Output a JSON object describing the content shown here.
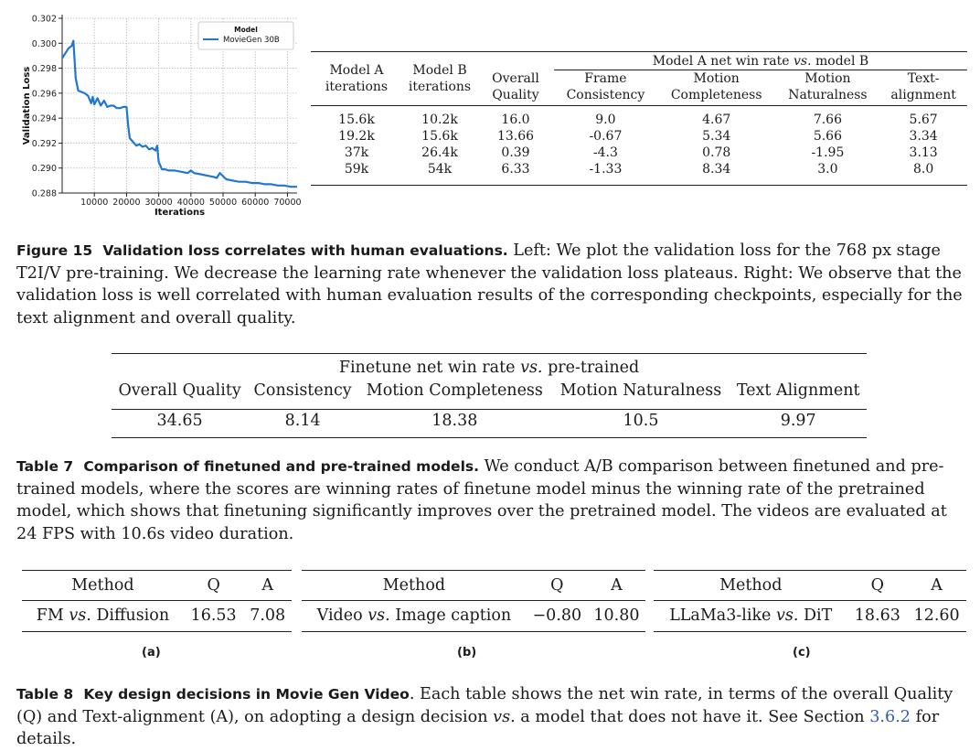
{
  "chart_data": {
    "type": "line",
    "xlabel": "Iterations",
    "ylabel": "Validation Loss",
    "xlim": [
      0,
      73000
    ],
    "ylim": [
      0.288,
      0.302
    ],
    "xticks": [
      10000,
      20000,
      30000,
      40000,
      50000,
      60000,
      70000
    ],
    "xtick_labels": [
      "10000",
      "20000",
      "30000",
      "40000",
      "50000",
      "60000",
      "70000"
    ],
    "yticks": [
      0.288,
      0.29,
      0.292,
      0.294,
      0.296,
      0.298,
      0.3,
      0.302
    ],
    "ytick_labels": [
      "0.288",
      "0.290",
      "0.292",
      "0.294",
      "0.296",
      "0.298",
      "0.300",
      "0.302"
    ],
    "grid": true,
    "legend_title": "Model",
    "legend_position": "top-right",
    "series": [
      {
        "name": "MovieGen 30B",
        "color": "#1f77d4",
        "x": [
          0,
          1000,
          2000,
          3000,
          3500,
          4200,
          5000,
          6000,
          7000,
          8000,
          9000,
          9500,
          10000,
          11000,
          12000,
          13000,
          14000,
          15000,
          16000,
          17000,
          18000,
          19000,
          20000,
          20500,
          21000,
          22000,
          23000,
          24000,
          25000,
          26000,
          27000,
          28000,
          29000,
          29500,
          30000,
          31000,
          32000,
          33000,
          35000,
          37000,
          39000,
          40000,
          41000,
          43000,
          45000,
          47000,
          48000,
          49000,
          51000,
          53000,
          55000,
          57000,
          59000,
          61000,
          63000,
          65000,
          67000,
          69000,
          71000,
          73000
        ],
        "y": [
          0.2988,
          0.2992,
          0.2996,
          0.2998,
          0.3002,
          0.2972,
          0.2962,
          0.2961,
          0.296,
          0.2958,
          0.2952,
          0.2957,
          0.2951,
          0.2956,
          0.295,
          0.2954,
          0.2949,
          0.295,
          0.295,
          0.2948,
          0.2948,
          0.2949,
          0.2949,
          0.2934,
          0.2924,
          0.2921,
          0.2918,
          0.2919,
          0.2917,
          0.2918,
          0.2915,
          0.2916,
          0.2914,
          0.2918,
          0.2905,
          0.2899,
          0.2899,
          0.2898,
          0.2898,
          0.2897,
          0.2896,
          0.2898,
          0.2896,
          0.2895,
          0.2894,
          0.2893,
          0.2892,
          0.2896,
          0.2891,
          0.289,
          0.2889,
          0.2889,
          0.2888,
          0.2888,
          0.2887,
          0.2887,
          0.2886,
          0.2886,
          0.2885,
          0.2885
        ]
      }
    ]
  },
  "table15": {
    "col_model_a": [
      "Model A",
      "iterations"
    ],
    "col_model_b": [
      "Model B",
      "iterations"
    ],
    "col_overall": [
      "Overall",
      "Quality"
    ],
    "group_pre": "Model A net win rate ",
    "group_vs": "vs.",
    "group_post": " model B",
    "col_frame": [
      "Frame",
      "Consistency"
    ],
    "col_motion_comp": [
      "Motion",
      "Completeness"
    ],
    "col_motion_nat": [
      "Motion",
      "Naturalness"
    ],
    "col_text": [
      "Text-",
      "alignment"
    ],
    "rows": [
      [
        "15.6k",
        "10.2k",
        "16.0",
        "9.0",
        "4.67",
        "7.66",
        "5.67"
      ],
      [
        "19.2k",
        "15.6k",
        "13.66",
        "-0.67",
        "5.34",
        "5.66",
        "3.34"
      ],
      [
        "37k",
        "26.4k",
        "0.39",
        "-4.3",
        "0.78",
        "-1.95",
        "3.13"
      ],
      [
        "59k",
        "54k",
        "6.33",
        "-1.33",
        "8.34",
        "3.0",
        "8.0"
      ]
    ]
  },
  "fig15_caption": {
    "label": "Figure 15",
    "bold": "Validation loss correlates with human evaluations.",
    "text": " Left: We plot the validation loss for the 768 px stage T2I/V pre-training. We decrease the learning rate whenever the validation loss plateaus. Right: We observe that the validation loss is well correlated with human evaluation results of the corresponding checkpoints, especially for the text alignment and overall quality."
  },
  "table7": {
    "header_pre": "Finetune net win rate ",
    "header_vs": "vs.",
    "header_post": " pre-trained",
    "columns": [
      "Overall Quality",
      "Consistency",
      "Motion Completeness",
      "Motion Naturalness",
      "Text Alignment"
    ],
    "values": [
      "34.65",
      "8.14",
      "18.38",
      "10.5",
      "9.97"
    ]
  },
  "table7_caption": {
    "label": "Table 7",
    "bold": "Comparison of finetuned and pre-trained models.",
    "text": " We conduct A/B comparison between finetuned and pre-trained models, where the scores are winning rates of finetune model minus the winning rate of the pretrained model, which shows that finetuning significantly improves over the pretrained model. The videos are evaluated at 24 FPS with 10.6s video duration."
  },
  "table8": {
    "col_method": "Method",
    "col_q": "Q",
    "col_a": "A",
    "vs": "vs.",
    "a": {
      "left": "FM ",
      "right": " Diffusion",
      "q": "16.53",
      "a": "7.08",
      "label": "(a)"
    },
    "b": {
      "left": "Video ",
      "right": " Image caption",
      "q": "−0.80",
      "a": "10.80",
      "label": "(b)"
    },
    "c": {
      "left": "LLaMa3-like ",
      "right": " DiT",
      "q": "18.63",
      "a": "12.60",
      "label": "(c)"
    }
  },
  "table8_caption": {
    "label": "Table 8",
    "bold": "Key design decisions in Movie Gen Video",
    "text1": ". Each table shows the net win rate, in terms of the overall Quality (Q) and Text-alignment (A), on adopting a design decision ",
    "vs": "vs.",
    "text2": " a model that does not have it. See Section ",
    "link": "3.6.2",
    "text3": " for details."
  }
}
